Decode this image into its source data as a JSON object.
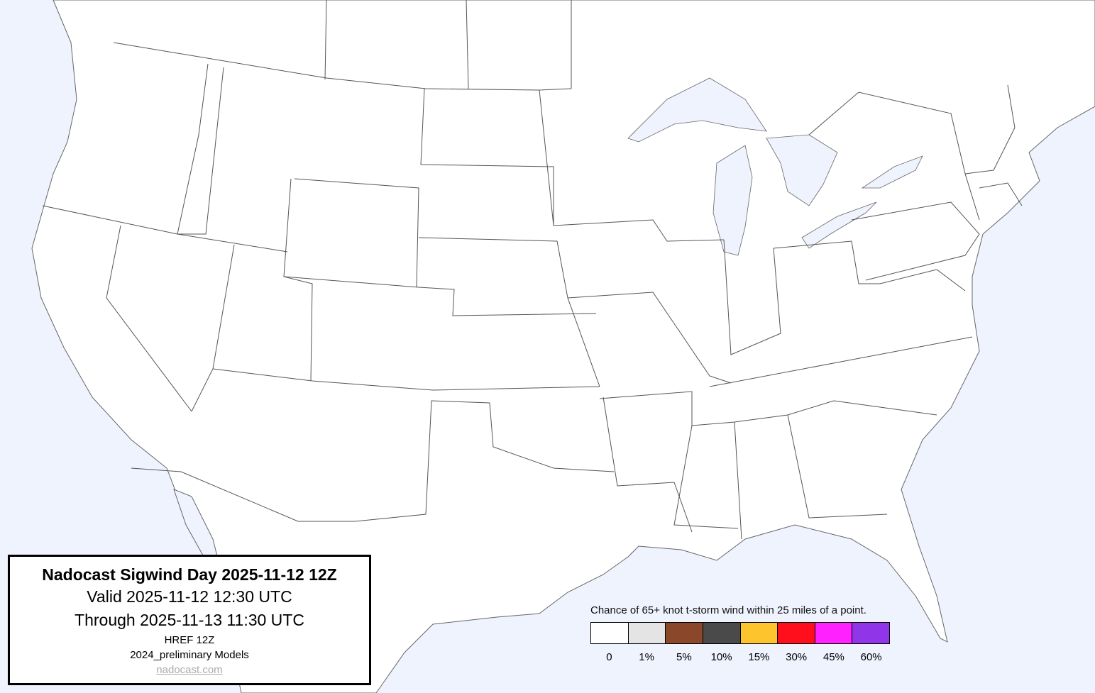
{
  "title": {
    "heading": "Nadocast Sigwind Day 2025-11-12 12Z",
    "valid": "Valid 2025-11-12 12:30 UTC",
    "through": "Through 2025-11-13 11:30 UTC",
    "model": "HREF 12Z",
    "models_version": "2024_preliminary Models",
    "link": "nadocast.com"
  },
  "legend": {
    "caption": "Chance of 65+ knot t-storm wind within 25 miles of a point.",
    "bins": [
      {
        "label": "0",
        "color": "#ffffff"
      },
      {
        "label": "1%",
        "color": "#e4e4e4"
      },
      {
        "label": "5%",
        "color": "#8b472a"
      },
      {
        "label": "10%",
        "color": "#4a4a4a"
      },
      {
        "label": "15%",
        "color": "#fec42e"
      },
      {
        "label": "30%",
        "color": "#ff0e1c"
      },
      {
        "label": "45%",
        "color": "#ff22ff"
      },
      {
        "label": "60%",
        "color": "#9035e8"
      }
    ]
  },
  "map": {
    "water_color": "#eef3fe",
    "land_color": "#ffffff",
    "border_color": "#555555",
    "forecast_areas": []
  }
}
